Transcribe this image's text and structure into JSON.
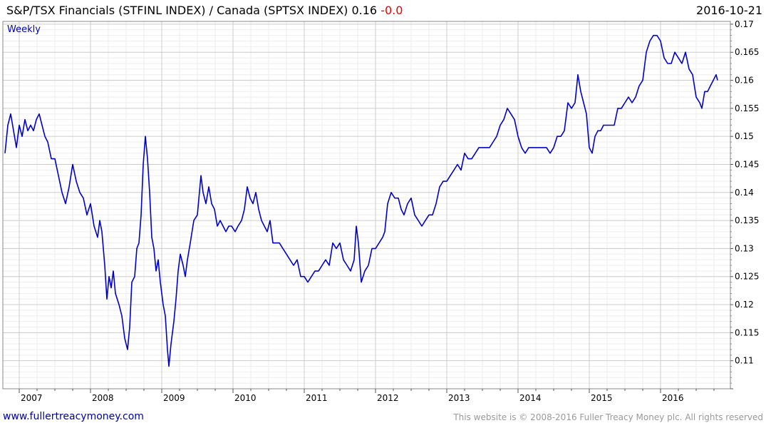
{
  "header": {
    "title": "S&P/TSX Financials (STFINL INDEX) / Canada (SPTSX INDEX) 0.16",
    "change": "-0.0",
    "date": "2016-10-21"
  },
  "footer": {
    "website": "www.fullertreacymoney.com",
    "copyright": "This website is © 2008-2016 Fuller Treacy Money plc. All rights reserved"
  },
  "colors": {
    "line": "#0000cc",
    "grid": "#d8d8d8",
    "change_negative": "#ee0000"
  },
  "chart_data": {
    "type": "line",
    "period_label": "Weekly",
    "title": "S&P/TSX Financials (STFINL INDEX) / Canada (SPTSX INDEX)",
    "x_tick_labels": [
      "2007",
      "2008",
      "2009",
      "2010",
      "2011",
      "2012",
      "2013",
      "2014",
      "2015",
      "2016"
    ],
    "y_tick_labels": [
      "0.11",
      "0.115",
      "0.12",
      "0.125",
      "0.13",
      "0.135",
      "0.14",
      "0.145",
      "0.15",
      "0.155",
      "0.16",
      "0.165",
      "0.17"
    ],
    "y_axis_side": "right",
    "ylim": [
      0.105,
      0.1705
    ],
    "xlim": [
      2006.8,
      2016.85
    ],
    "grid": true,
    "last_value": 0.16,
    "series": [
      {
        "values": [
          [
            2006.8,
            0.147
          ],
          [
            2006.84,
            0.152
          ],
          [
            2006.88,
            0.154
          ],
          [
            2006.92,
            0.151
          ],
          [
            2006.96,
            0.148
          ],
          [
            2007.0,
            0.152
          ],
          [
            2007.04,
            0.15
          ],
          [
            2007.08,
            0.153
          ],
          [
            2007.12,
            0.151
          ],
          [
            2007.16,
            0.152
          ],
          [
            2007.2,
            0.151
          ],
          [
            2007.24,
            0.153
          ],
          [
            2007.28,
            0.154
          ],
          [
            2007.32,
            0.152
          ],
          [
            2007.36,
            0.15
          ],
          [
            2007.4,
            0.149
          ],
          [
            2007.45,
            0.146
          ],
          [
            2007.5,
            0.146
          ],
          [
            2007.55,
            0.143
          ],
          [
            2007.6,
            0.14
          ],
          [
            2007.65,
            0.138
          ],
          [
            2007.7,
            0.141
          ],
          [
            2007.75,
            0.145
          ],
          [
            2007.8,
            0.142
          ],
          [
            2007.85,
            0.14
          ],
          [
            2007.9,
            0.139
          ],
          [
            2007.95,
            0.136
          ],
          [
            2008.0,
            0.138
          ],
          [
            2008.05,
            0.134
          ],
          [
            2008.1,
            0.132
          ],
          [
            2008.13,
            0.135
          ],
          [
            2008.16,
            0.133
          ],
          [
            2008.2,
            0.127
          ],
          [
            2008.23,
            0.121
          ],
          [
            2008.26,
            0.125
          ],
          [
            2008.29,
            0.123
          ],
          [
            2008.32,
            0.126
          ],
          [
            2008.35,
            0.122
          ],
          [
            2008.4,
            0.12
          ],
          [
            2008.44,
            0.118
          ],
          [
            2008.48,
            0.114
          ],
          [
            2008.52,
            0.112
          ],
          [
            2008.55,
            0.116
          ],
          [
            2008.58,
            0.124
          ],
          [
            2008.62,
            0.125
          ],
          [
            2008.65,
            0.13
          ],
          [
            2008.68,
            0.131
          ],
          [
            2008.71,
            0.136
          ],
          [
            2008.74,
            0.145
          ],
          [
            2008.77,
            0.15
          ],
          [
            2008.8,
            0.146
          ],
          [
            2008.83,
            0.14
          ],
          [
            2008.86,
            0.132
          ],
          [
            2008.89,
            0.13
          ],
          [
            2008.92,
            0.126
          ],
          [
            2008.95,
            0.128
          ],
          [
            2008.98,
            0.124
          ],
          [
            2009.02,
            0.12
          ],
          [
            2009.05,
            0.118
          ],
          [
            2009.08,
            0.112
          ],
          [
            2009.1,
            0.109
          ],
          [
            2009.13,
            0.113
          ],
          [
            2009.17,
            0.117
          ],
          [
            2009.2,
            0.121
          ],
          [
            2009.23,
            0.126
          ],
          [
            2009.26,
            0.129
          ],
          [
            2009.3,
            0.127
          ],
          [
            2009.33,
            0.125
          ],
          [
            2009.36,
            0.128
          ],
          [
            2009.4,
            0.131
          ],
          [
            2009.45,
            0.135
          ],
          [
            2009.5,
            0.136
          ],
          [
            2009.55,
            0.143
          ],
          [
            2009.58,
            0.14
          ],
          [
            2009.62,
            0.138
          ],
          [
            2009.66,
            0.141
          ],
          [
            2009.7,
            0.138
          ],
          [
            2009.74,
            0.137
          ],
          [
            2009.78,
            0.134
          ],
          [
            2009.82,
            0.135
          ],
          [
            2009.86,
            0.134
          ],
          [
            2009.9,
            0.133
          ],
          [
            2009.94,
            0.134
          ],
          [
            2009.98,
            0.134
          ],
          [
            2010.03,
            0.133
          ],
          [
            2010.07,
            0.134
          ],
          [
            2010.12,
            0.135
          ],
          [
            2010.16,
            0.137
          ],
          [
            2010.2,
            0.141
          ],
          [
            2010.24,
            0.139
          ],
          [
            2010.28,
            0.138
          ],
          [
            2010.32,
            0.14
          ],
          [
            2010.36,
            0.137
          ],
          [
            2010.4,
            0.135
          ],
          [
            2010.44,
            0.134
          ],
          [
            2010.48,
            0.133
          ],
          [
            2010.52,
            0.135
          ],
          [
            2010.56,
            0.131
          ],
          [
            2010.6,
            0.131
          ],
          [
            2010.65,
            0.131
          ],
          [
            2010.7,
            0.13
          ],
          [
            2010.75,
            0.129
          ],
          [
            2010.8,
            0.128
          ],
          [
            2010.85,
            0.127
          ],
          [
            2010.9,
            0.128
          ],
          [
            2010.95,
            0.125
          ],
          [
            2011.0,
            0.125
          ],
          [
            2011.05,
            0.124
          ],
          [
            2011.1,
            0.125
          ],
          [
            2011.15,
            0.126
          ],
          [
            2011.2,
            0.126
          ],
          [
            2011.25,
            0.127
          ],
          [
            2011.3,
            0.128
          ],
          [
            2011.35,
            0.127
          ],
          [
            2011.4,
            0.131
          ],
          [
            2011.45,
            0.13
          ],
          [
            2011.5,
            0.131
          ],
          [
            2011.55,
            0.128
          ],
          [
            2011.6,
            0.127
          ],
          [
            2011.65,
            0.126
          ],
          [
            2011.7,
            0.128
          ],
          [
            2011.73,
            0.134
          ],
          [
            2011.76,
            0.131
          ],
          [
            2011.8,
            0.124
          ],
          [
            2011.85,
            0.126
          ],
          [
            2011.9,
            0.127
          ],
          [
            2011.95,
            0.13
          ],
          [
            2012.0,
            0.13
          ],
          [
            2012.05,
            0.131
          ],
          [
            2012.1,
            0.132
          ],
          [
            2012.13,
            0.133
          ],
          [
            2012.17,
            0.138
          ],
          [
            2012.22,
            0.14
          ],
          [
            2012.27,
            0.139
          ],
          [
            2012.32,
            0.139
          ],
          [
            2012.36,
            0.137
          ],
          [
            2012.4,
            0.136
          ],
          [
            2012.45,
            0.138
          ],
          [
            2012.5,
            0.139
          ],
          [
            2012.55,
            0.136
          ],
          [
            2012.6,
            0.135
          ],
          [
            2012.65,
            0.134
          ],
          [
            2012.7,
            0.135
          ],
          [
            2012.75,
            0.136
          ],
          [
            2012.8,
            0.136
          ],
          [
            2012.85,
            0.138
          ],
          [
            2012.9,
            0.141
          ],
          [
            2012.95,
            0.142
          ],
          [
            2013.0,
            0.142
          ],
          [
            2013.05,
            0.143
          ],
          [
            2013.1,
            0.144
          ],
          [
            2013.15,
            0.145
          ],
          [
            2013.2,
            0.144
          ],
          [
            2013.25,
            0.147
          ],
          [
            2013.3,
            0.146
          ],
          [
            2013.35,
            0.146
          ],
          [
            2013.4,
            0.147
          ],
          [
            2013.45,
            0.148
          ],
          [
            2013.5,
            0.148
          ],
          [
            2013.55,
            0.148
          ],
          [
            2013.6,
            0.148
          ],
          [
            2013.65,
            0.149
          ],
          [
            2013.7,
            0.15
          ],
          [
            2013.75,
            0.152
          ],
          [
            2013.8,
            0.153
          ],
          [
            2013.85,
            0.155
          ],
          [
            2013.9,
            0.154
          ],
          [
            2013.95,
            0.153
          ],
          [
            2014.0,
            0.15
          ],
          [
            2014.05,
            0.148
          ],
          [
            2014.1,
            0.147
          ],
          [
            2014.15,
            0.148
          ],
          [
            2014.2,
            0.148
          ],
          [
            2014.25,
            0.148
          ],
          [
            2014.3,
            0.148
          ],
          [
            2014.35,
            0.148
          ],
          [
            2014.4,
            0.148
          ],
          [
            2014.45,
            0.147
          ],
          [
            2014.5,
            0.148
          ],
          [
            2014.55,
            0.15
          ],
          [
            2014.6,
            0.15
          ],
          [
            2014.65,
            0.151
          ],
          [
            2014.7,
            0.156
          ],
          [
            2014.75,
            0.155
          ],
          [
            2014.8,
            0.156
          ],
          [
            2014.84,
            0.161
          ],
          [
            2014.88,
            0.158
          ],
          [
            2014.92,
            0.156
          ],
          [
            2014.96,
            0.154
          ],
          [
            2015.0,
            0.148
          ],
          [
            2015.04,
            0.147
          ],
          [
            2015.08,
            0.15
          ],
          [
            2015.12,
            0.151
          ],
          [
            2015.16,
            0.151
          ],
          [
            2015.2,
            0.152
          ],
          [
            2015.25,
            0.152
          ],
          [
            2015.3,
            0.152
          ],
          [
            2015.35,
            0.152
          ],
          [
            2015.4,
            0.155
          ],
          [
            2015.45,
            0.155
          ],
          [
            2015.5,
            0.156
          ],
          [
            2015.55,
            0.157
          ],
          [
            2015.6,
            0.156
          ],
          [
            2015.65,
            0.157
          ],
          [
            2015.7,
            0.159
          ],
          [
            2015.75,
            0.16
          ],
          [
            2015.8,
            0.165
          ],
          [
            2015.85,
            0.167
          ],
          [
            2015.9,
            0.168
          ],
          [
            2015.95,
            0.168
          ],
          [
            2016.0,
            0.167
          ],
          [
            2016.05,
            0.164
          ],
          [
            2016.1,
            0.163
          ],
          [
            2016.15,
            0.163
          ],
          [
            2016.2,
            0.165
          ],
          [
            2016.25,
            0.164
          ],
          [
            2016.3,
            0.163
          ],
          [
            2016.35,
            0.165
          ],
          [
            2016.4,
            0.162
          ],
          [
            2016.45,
            0.161
          ],
          [
            2016.5,
            0.157
          ],
          [
            2016.55,
            0.156
          ],
          [
            2016.58,
            0.155
          ],
          [
            2016.62,
            0.158
          ],
          [
            2016.66,
            0.158
          ],
          [
            2016.7,
            0.159
          ],
          [
            2016.74,
            0.16
          ],
          [
            2016.78,
            0.161
          ],
          [
            2016.8,
            0.16
          ]
        ]
      }
    ]
  }
}
